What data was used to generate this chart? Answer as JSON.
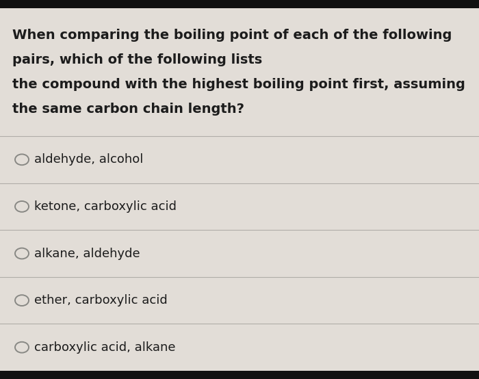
{
  "question_lines": [
    "When comparing the boiling point of each of the following",
    "pairs, which of the following lists",
    "the compound with the highest boiling point first, assuming",
    "the same carbon chain length?"
  ],
  "options": [
    "aldehyde, alcohol",
    "ketone, carboxylic acid",
    "alkane, aldehyde",
    "ether, carboxylic acid",
    "carboxylic acid, alkane"
  ],
  "bg_color": "#c8c4bc",
  "content_bg": "#e2ddd7",
  "text_color": "#1c1c1c",
  "circle_edge_color": "#888884",
  "divider_color": "#b0ada8",
  "top_bar_color": "#111111",
  "bottom_bar_color": "#111111",
  "question_font_size": 14,
  "option_font_size": 13,
  "fig_width": 7.0,
  "fig_height": 5.54,
  "dpi": 100
}
